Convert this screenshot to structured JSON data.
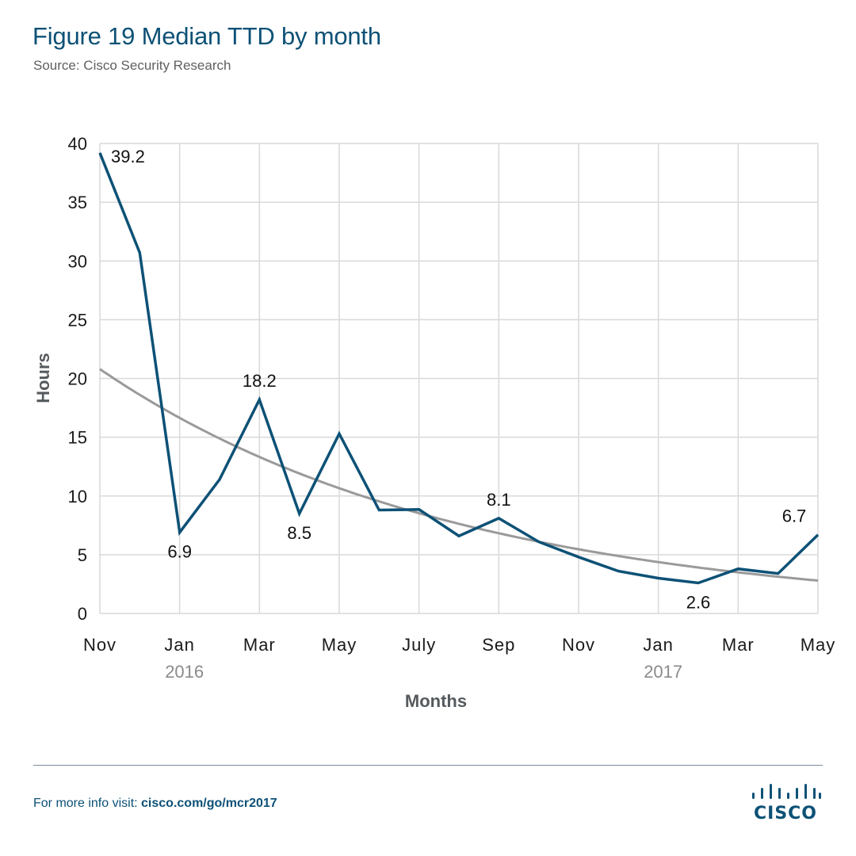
{
  "header": {
    "title": "Figure 19  Median TTD by month",
    "subtitle": "Source: Cisco Security Research"
  },
  "footer": {
    "prefix": "For more info visit: ",
    "link": "cisco.com/go/mcr2017",
    "logo_text": "CISCO"
  },
  "colors": {
    "series": "#0d5176",
    "trend": "#9a9a9a",
    "grid": "#d9d9d9",
    "brand": "#0d5176"
  },
  "chart_data": {
    "type": "line",
    "title": "Figure 19  Median TTD by month",
    "subtitle": "Source: Cisco Security Research",
    "xlabel": "Months",
    "ylabel": "Hours",
    "ylim": [
      0,
      40
    ],
    "yticks": [
      0,
      5,
      10,
      15,
      20,
      25,
      30,
      35,
      40
    ],
    "grid": true,
    "legend": "none",
    "x": [
      "Nov 2015",
      "Dec 2015",
      "Jan 2016",
      "Feb 2016",
      "Mar 2016",
      "Apr 2016",
      "May 2016",
      "Jun 2016",
      "Jul 2016",
      "Aug 2016",
      "Sep 2016",
      "Oct 2016",
      "Nov 2016",
      "Dec 2016",
      "Jan 2017",
      "Feb 2017",
      "Mar 2017",
      "Apr 2017",
      "May 2017"
    ],
    "xticks": [
      {
        "index": 0,
        "label": "Nov",
        "year": ""
      },
      {
        "index": 2,
        "label": "Jan",
        "year": "2016"
      },
      {
        "index": 4,
        "label": "Mar",
        "year": ""
      },
      {
        "index": 6,
        "label": "May",
        "year": ""
      },
      {
        "index": 8,
        "label": "July",
        "year": ""
      },
      {
        "index": 10,
        "label": "Sep",
        "year": ""
      },
      {
        "index": 12,
        "label": "Nov",
        "year": ""
      },
      {
        "index": 14,
        "label": "Jan",
        "year": "2017"
      },
      {
        "index": 16,
        "label": "Mar",
        "year": ""
      },
      {
        "index": 18,
        "label": "May",
        "year": ""
      }
    ],
    "series": [
      {
        "name": "Median TTD",
        "values": [
          39.2,
          30.7,
          6.9,
          11.4,
          18.2,
          8.5,
          15.3,
          8.8,
          8.85,
          6.6,
          8.1,
          6.1,
          4.8,
          3.6,
          3.0,
          2.6,
          3.8,
          3.4,
          6.7
        ],
        "labeled_indices": [
          0,
          2,
          4,
          5,
          10,
          15,
          18
        ],
        "estimated_indices": [
          1,
          3,
          6,
          7,
          8,
          9,
          11,
          12,
          13,
          14,
          16,
          17
        ],
        "value_note": "Only the labeled indices are printed in the figure. The estimated indices were read from line positions against the gridlines and are approximate (roughly ±0.3 h)."
      },
      {
        "name": "Trend",
        "kind": "exponential-fit",
        "start": 20.8,
        "end": 2.8,
        "value_note": "Neither the fit parameters nor the endpoint values are printed. Start and end were read from the curve's position and are approximate."
      }
    ],
    "annotations": [
      {
        "index": 0,
        "text": "39.2",
        "pos": "right"
      },
      {
        "index": 2,
        "text": "6.9",
        "pos": "below"
      },
      {
        "index": 4,
        "text": "18.2",
        "pos": "above"
      },
      {
        "index": 5,
        "text": "8.5",
        "pos": "below"
      },
      {
        "index": 10,
        "text": "8.1",
        "pos": "above"
      },
      {
        "index": 15,
        "text": "2.6",
        "pos": "below"
      },
      {
        "index": 18,
        "text": "6.7",
        "pos": "above-left"
      }
    ]
  }
}
